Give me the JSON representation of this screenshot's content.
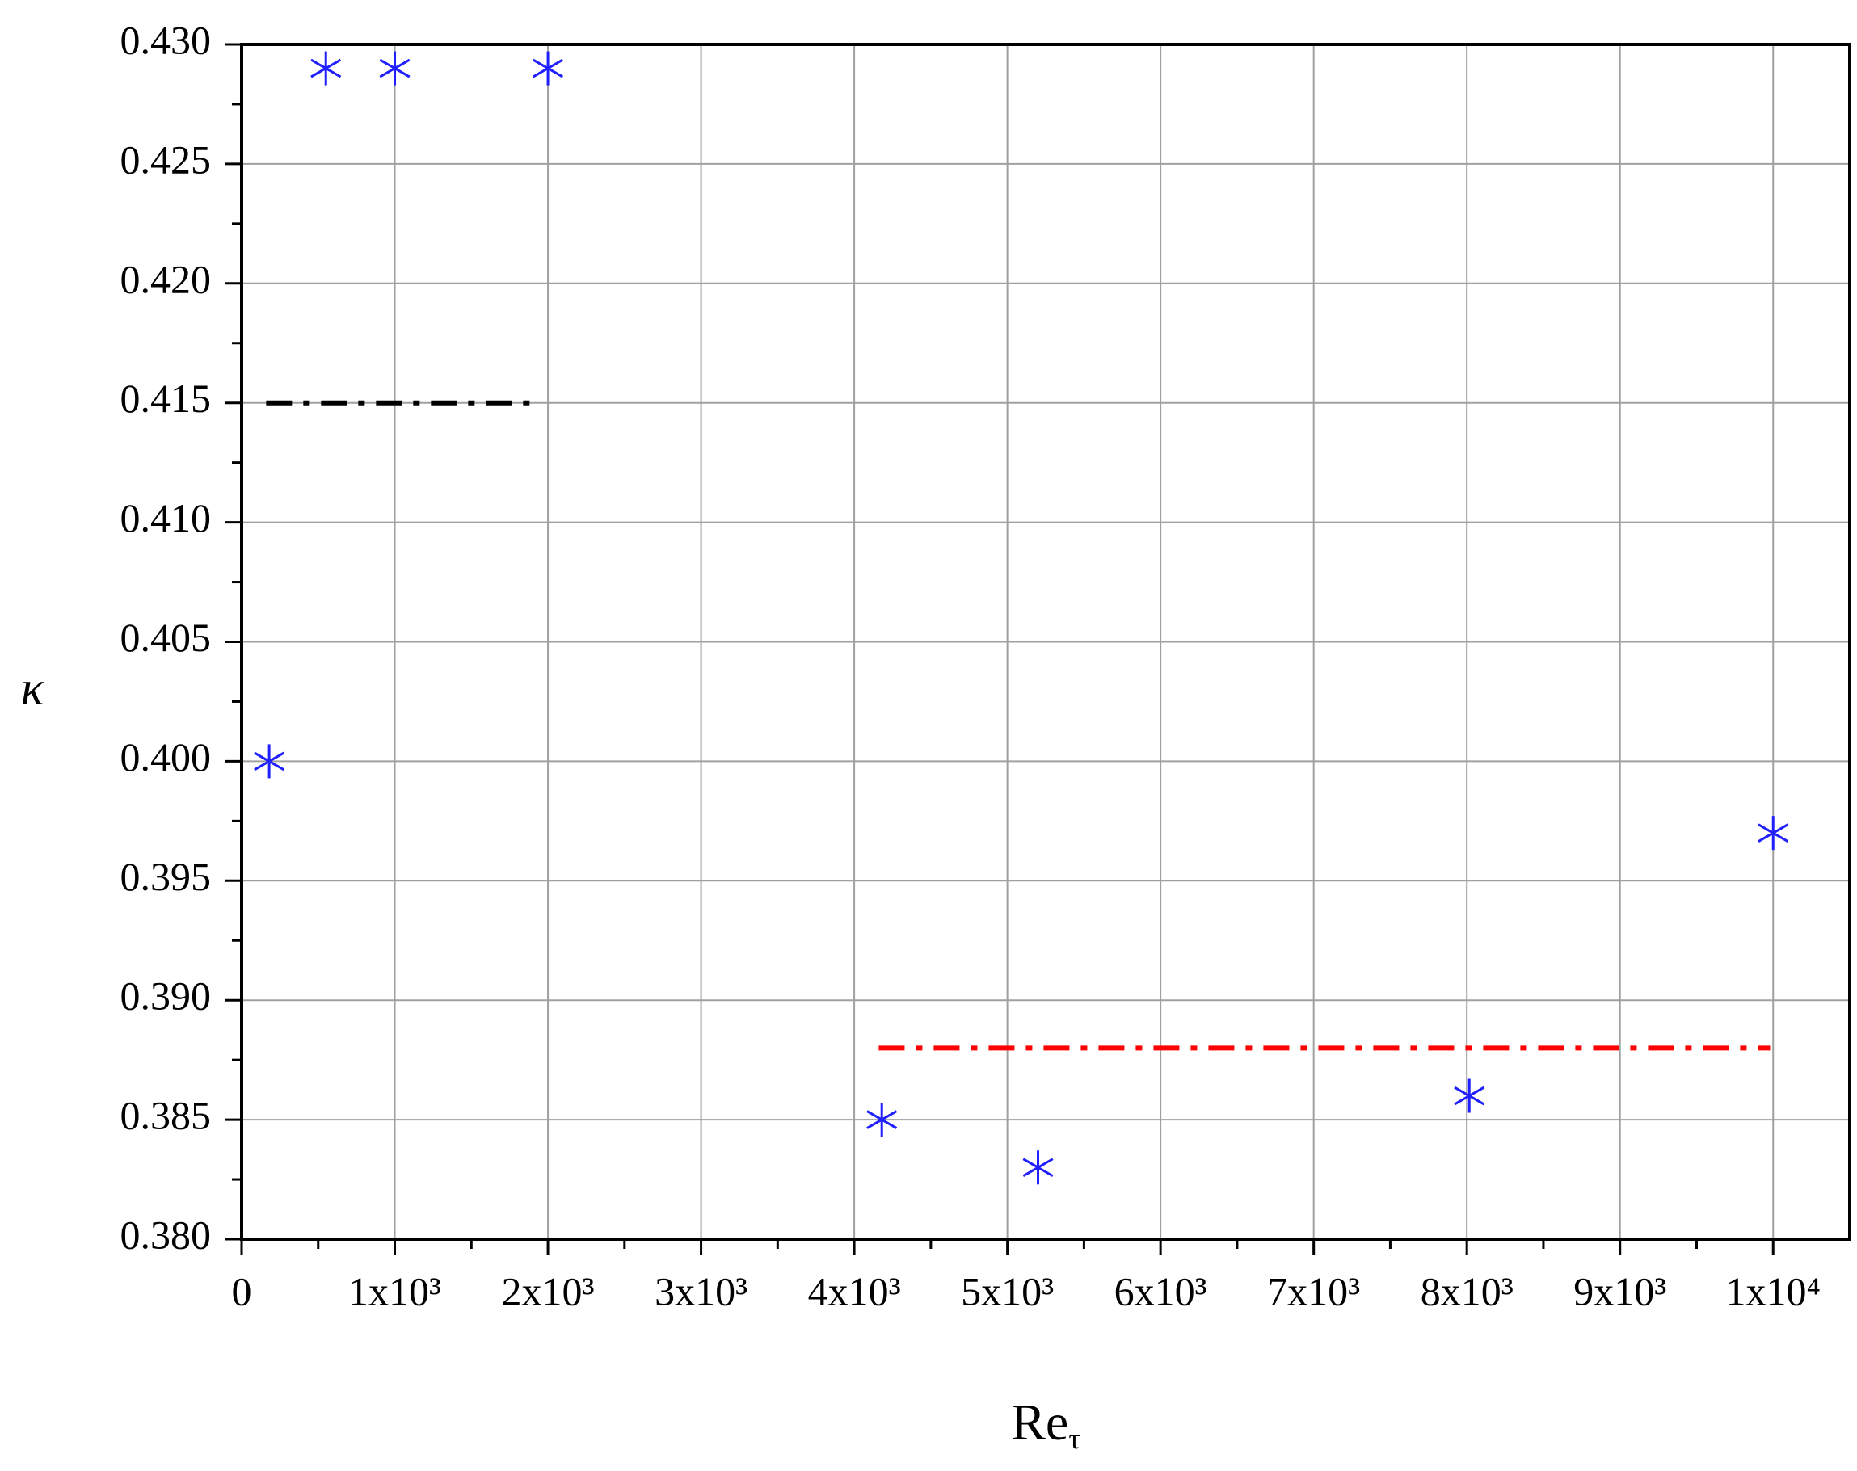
{
  "chart_data": {
    "type": "scatter",
    "xlabel": {
      "text": "Re",
      "subscript": "τ"
    },
    "ylabel": "κ",
    "xlim": [
      0,
      10500
    ],
    "ylim": [
      0.38,
      0.43
    ],
    "xticks": [
      0,
      {
        "value": 1000,
        "label": "1x10³"
      },
      {
        "value": 2000,
        "label": "2x10³"
      },
      {
        "value": 3000,
        "label": "3x10³"
      },
      {
        "value": 4000,
        "label": "4x10³"
      },
      {
        "value": 5000,
        "label": "5x10³"
      },
      {
        "value": 6000,
        "label": "6x10³"
      },
      {
        "value": 7000,
        "label": "7x10³"
      },
      {
        "value": 8000,
        "label": "8x10³"
      },
      {
        "value": 9000,
        "label": "9x10³"
      },
      {
        "value": 10000,
        "label": "1x10⁴"
      }
    ],
    "xminorticks": [
      500,
      1500,
      2500,
      3500,
      4500,
      5500,
      6500,
      7500,
      8500,
      9500
    ],
    "yticks": [
      {
        "value": 0.38,
        "label": "0.380"
      },
      {
        "value": 0.385,
        "label": "0.385"
      },
      {
        "value": 0.39,
        "label": "0.390"
      },
      {
        "value": 0.395,
        "label": "0.395"
      },
      {
        "value": 0.4,
        "label": "0.400"
      },
      {
        "value": 0.405,
        "label": "0.405"
      },
      {
        "value": 0.41,
        "label": "0.410"
      },
      {
        "value": 0.415,
        "label": "0.415"
      },
      {
        "value": 0.42,
        "label": "0.420"
      },
      {
        "value": 0.425,
        "label": "0.425"
      },
      {
        "value": 0.43,
        "label": "0.430"
      }
    ],
    "yminorticks": [
      0.3825,
      0.3875,
      0.3925,
      0.3975,
      0.4025,
      0.4075,
      0.4125,
      0.4175,
      0.4225,
      0.4275
    ],
    "grid": true,
    "series": [
      {
        "type": "scatter",
        "marker": "asterisk",
        "color": "#1f1fff",
        "x": [
          180,
          550,
          1000,
          2000,
          4180,
          5200,
          8016,
          10000
        ],
        "values": [
          0.4,
          0.429,
          0.429,
          0.429,
          0.385,
          0.383,
          0.386,
          0.397
        ]
      },
      {
        "type": "line",
        "dash": "dash-dot",
        "color": "#000000",
        "x": [
          160,
          1940
        ],
        "values": [
          0.415,
          0.415
        ]
      },
      {
        "type": "line",
        "dash": "dash-dot",
        "color": "#ff0000",
        "x": [
          4160,
          9980
        ],
        "values": [
          0.388,
          0.388
        ]
      }
    ]
  }
}
